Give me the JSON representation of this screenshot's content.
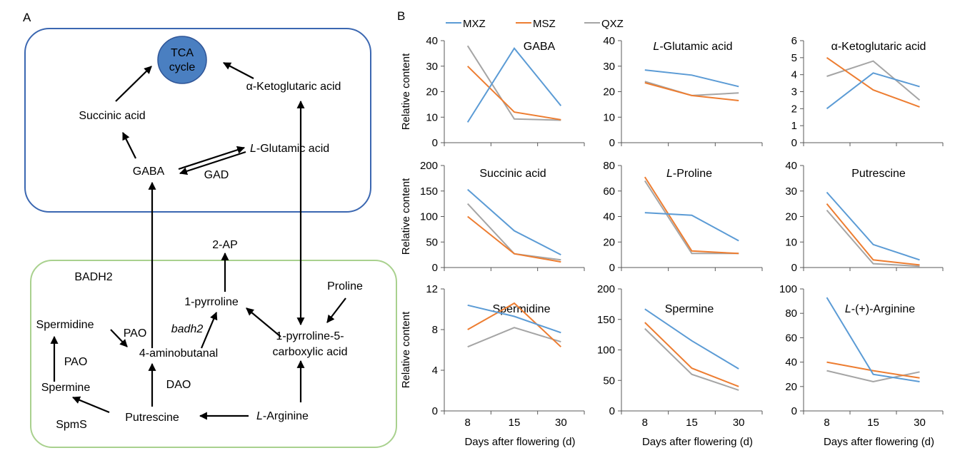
{
  "panel_a": {
    "letter": "A",
    "nodes": {
      "tca": "TCA cycle",
      "tca_line1": "TCA",
      "tca_line2": "cycle",
      "aketo": "α-Ketoglutaric acid",
      "succinic": "Succinic acid",
      "glutamic_prefix": "L",
      "glutamic_rest": "-Glutamic acid",
      "gaba": "GABA",
      "gad": "GAD",
      "ap2": "2-AP",
      "badh2_enzyme": "BADH2",
      "pyrroline": "1-pyrroline",
      "proline": "Proline",
      "spermidine": "Spermidine",
      "pao1": "PAO",
      "badh2_gene": "badh2",
      "p5c_line1": "1-pyrroline-5-",
      "p5c_line2": "carboxylic acid",
      "aminobutanal": "4-aminobutanal",
      "pao2": "PAO",
      "spermine": "Spermine",
      "dao": "DAO",
      "putrescine": "Putrescine",
      "spms": "SpmS",
      "arginine_prefix": "L",
      "arginine_rest": "-Arginine"
    },
    "colors": {
      "top_box": "#3b67b1",
      "bottom_box": "#a9d18e",
      "tca_fill": "#4a7fc1",
      "tca_stroke": "#2f5597"
    }
  },
  "panel_b": {
    "letter": "B",
    "legend": [
      "MXZ",
      "MSZ",
      "QXZ"
    ],
    "colors": {
      "MXZ": "#5b9bd5",
      "MSZ": "#ed7d31",
      "QXZ": "#a5a5a5"
    },
    "ylabel": "Relative content",
    "xlabel": "Days after flowering (d)"
  },
  "chart_data": [
    {
      "type": "line",
      "title": "GABA",
      "title_italic_prefix": "",
      "categories": [
        "8",
        "15",
        "30"
      ],
      "ylim": [
        0,
        40
      ],
      "yticks": [
        "0",
        "10",
        "20",
        "30",
        "40"
      ],
      "series": [
        {
          "name": "MXZ",
          "values": [
            8,
            37,
            14.5
          ]
        },
        {
          "name": "MSZ",
          "values": [
            30,
            12,
            9
          ]
        },
        {
          "name": "QXZ",
          "values": [
            38,
            9.3,
            8.8
          ]
        }
      ]
    },
    {
      "type": "line",
      "title": "-Glutamic acid",
      "title_italic_prefix": "L",
      "categories": [
        "8",
        "15",
        "30"
      ],
      "ylim": [
        0,
        40
      ],
      "yticks": [
        "0",
        "10",
        "20",
        "30",
        "40"
      ],
      "series": [
        {
          "name": "MXZ",
          "values": [
            28.5,
            26.5,
            22
          ]
        },
        {
          "name": "MSZ",
          "values": [
            23.5,
            18.5,
            16.5
          ]
        },
        {
          "name": "QXZ",
          "values": [
            24,
            18.5,
            19.5
          ]
        }
      ]
    },
    {
      "type": "line",
      "title": "α-Ketoglutaric acid",
      "title_italic_prefix": "",
      "categories": [
        "8",
        "15",
        "30"
      ],
      "ylim": [
        0,
        6
      ],
      "yticks": [
        "0",
        "1",
        "2",
        "3",
        "4",
        "5",
        "6"
      ],
      "series": [
        {
          "name": "MXZ",
          "values": [
            2,
            4.1,
            3.3
          ]
        },
        {
          "name": "MSZ",
          "values": [
            5,
            3.1,
            2.1
          ]
        },
        {
          "name": "QXZ",
          "values": [
            3.9,
            4.8,
            2.5
          ]
        }
      ]
    },
    {
      "type": "line",
      "title": "Succinic acid",
      "title_italic_prefix": "",
      "categories": [
        "8",
        "15",
        "30"
      ],
      "ylim": [
        0,
        200
      ],
      "yticks": [
        "0",
        "50",
        "100",
        "150",
        "200"
      ],
      "series": [
        {
          "name": "MXZ",
          "values": [
            153,
            72,
            25
          ]
        },
        {
          "name": "MSZ",
          "values": [
            100,
            27,
            11
          ]
        },
        {
          "name": "QXZ",
          "values": [
            125,
            27,
            15
          ]
        }
      ]
    },
    {
      "type": "line",
      "title": "-Proline",
      "title_italic_prefix": "L",
      "categories": [
        "8",
        "15",
        "30"
      ],
      "ylim": [
        0,
        80
      ],
      "yticks": [
        "0",
        "20",
        "40",
        "60",
        "80"
      ],
      "series": [
        {
          "name": "MXZ",
          "values": [
            43,
            41,
            21
          ]
        },
        {
          "name": "MSZ",
          "values": [
            71,
            13,
            11
          ]
        },
        {
          "name": "QXZ",
          "values": [
            68,
            11,
            11
          ]
        }
      ]
    },
    {
      "type": "line",
      "title": "Putrescine",
      "title_italic_prefix": "",
      "categories": [
        "8",
        "15",
        "30"
      ],
      "ylim": [
        0,
        40
      ],
      "yticks": [
        "0",
        "10",
        "20",
        "30",
        "40"
      ],
      "series": [
        {
          "name": "MXZ",
          "values": [
            29.5,
            9,
            3
          ]
        },
        {
          "name": "MSZ",
          "values": [
            25,
            3,
            1
          ]
        },
        {
          "name": "QXZ",
          "values": [
            22.5,
            1.5,
            0.5
          ]
        }
      ]
    },
    {
      "type": "line",
      "title": "Spermidine",
      "title_italic_prefix": "",
      "categories": [
        "8",
        "15",
        "30"
      ],
      "ylim": [
        0,
        12
      ],
      "yticks": [
        "0",
        "4",
        "8",
        "12"
      ],
      "series": [
        {
          "name": "MXZ",
          "values": [
            10.4,
            9.3,
            7.7
          ]
        },
        {
          "name": "MSZ",
          "values": [
            8,
            10.6,
            6.3
          ]
        },
        {
          "name": "QXZ",
          "values": [
            6.3,
            8.2,
            6.8
          ]
        }
      ]
    },
    {
      "type": "line",
      "title": "Spermine",
      "title_italic_prefix": "",
      "categories": [
        "8",
        "15",
        "30"
      ],
      "ylim": [
        0,
        200
      ],
      "yticks": [
        "0",
        "50",
        "100",
        "150",
        "200"
      ],
      "series": [
        {
          "name": "MXZ",
          "values": [
            167,
            115,
            69
          ]
        },
        {
          "name": "MSZ",
          "values": [
            145,
            70,
            40
          ]
        },
        {
          "name": "QXZ",
          "values": [
            135,
            60,
            34
          ]
        }
      ]
    },
    {
      "type": "line",
      "title": "-(+)-Arginine",
      "title_italic_prefix": "L",
      "categories": [
        "8",
        "15",
        "30"
      ],
      "ylim": [
        0,
        100
      ],
      "yticks": [
        "0",
        "20",
        "40",
        "60",
        "80",
        "100"
      ],
      "series": [
        {
          "name": "MXZ",
          "values": [
            93,
            30,
            24
          ]
        },
        {
          "name": "MSZ",
          "values": [
            40,
            33,
            27
          ]
        },
        {
          "name": "QXZ",
          "values": [
            33,
            24,
            32
          ]
        }
      ]
    }
  ]
}
